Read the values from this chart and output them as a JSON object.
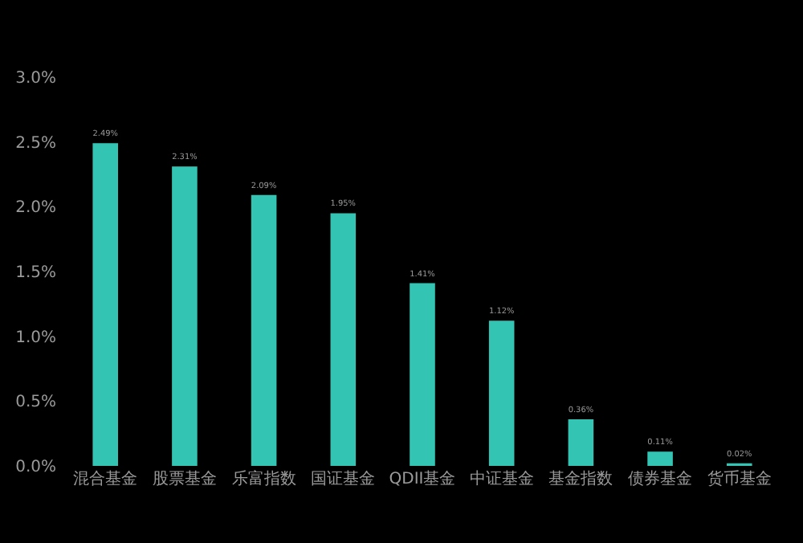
{
  "chart_data": {
    "type": "bar",
    "categories": [
      "混合基金",
      "股票基金",
      "乐富指数",
      "国证基金",
      "QDII基金",
      "中证基金",
      "基金指数",
      "债券基金",
      "货币基金"
    ],
    "values": [
      2.49,
      2.31,
      2.09,
      1.95,
      1.41,
      1.12,
      0.36,
      0.11,
      0.02
    ],
    "value_labels": [
      "2.49%",
      "2.31%",
      "2.09%",
      "1.95%",
      "1.41%",
      "1.12%",
      "0.36%",
      "0.11%",
      "0.02%"
    ],
    "color": "#33c4b4",
    "ylim": [
      0,
      3
    ],
    "yticks": [
      {
        "value": 0,
        "label": "0.0%"
      },
      {
        "value": 0.5,
        "label": "0.5%"
      },
      {
        "value": 1,
        "label": "1.0%"
      },
      {
        "value": 1.5,
        "label": "1.5%"
      },
      {
        "value": 2,
        "label": "2.0%"
      },
      {
        "value": 2.5,
        "label": "2.5%"
      },
      {
        "value": 3,
        "label": "3.0%"
      }
    ],
    "grid": false
  }
}
